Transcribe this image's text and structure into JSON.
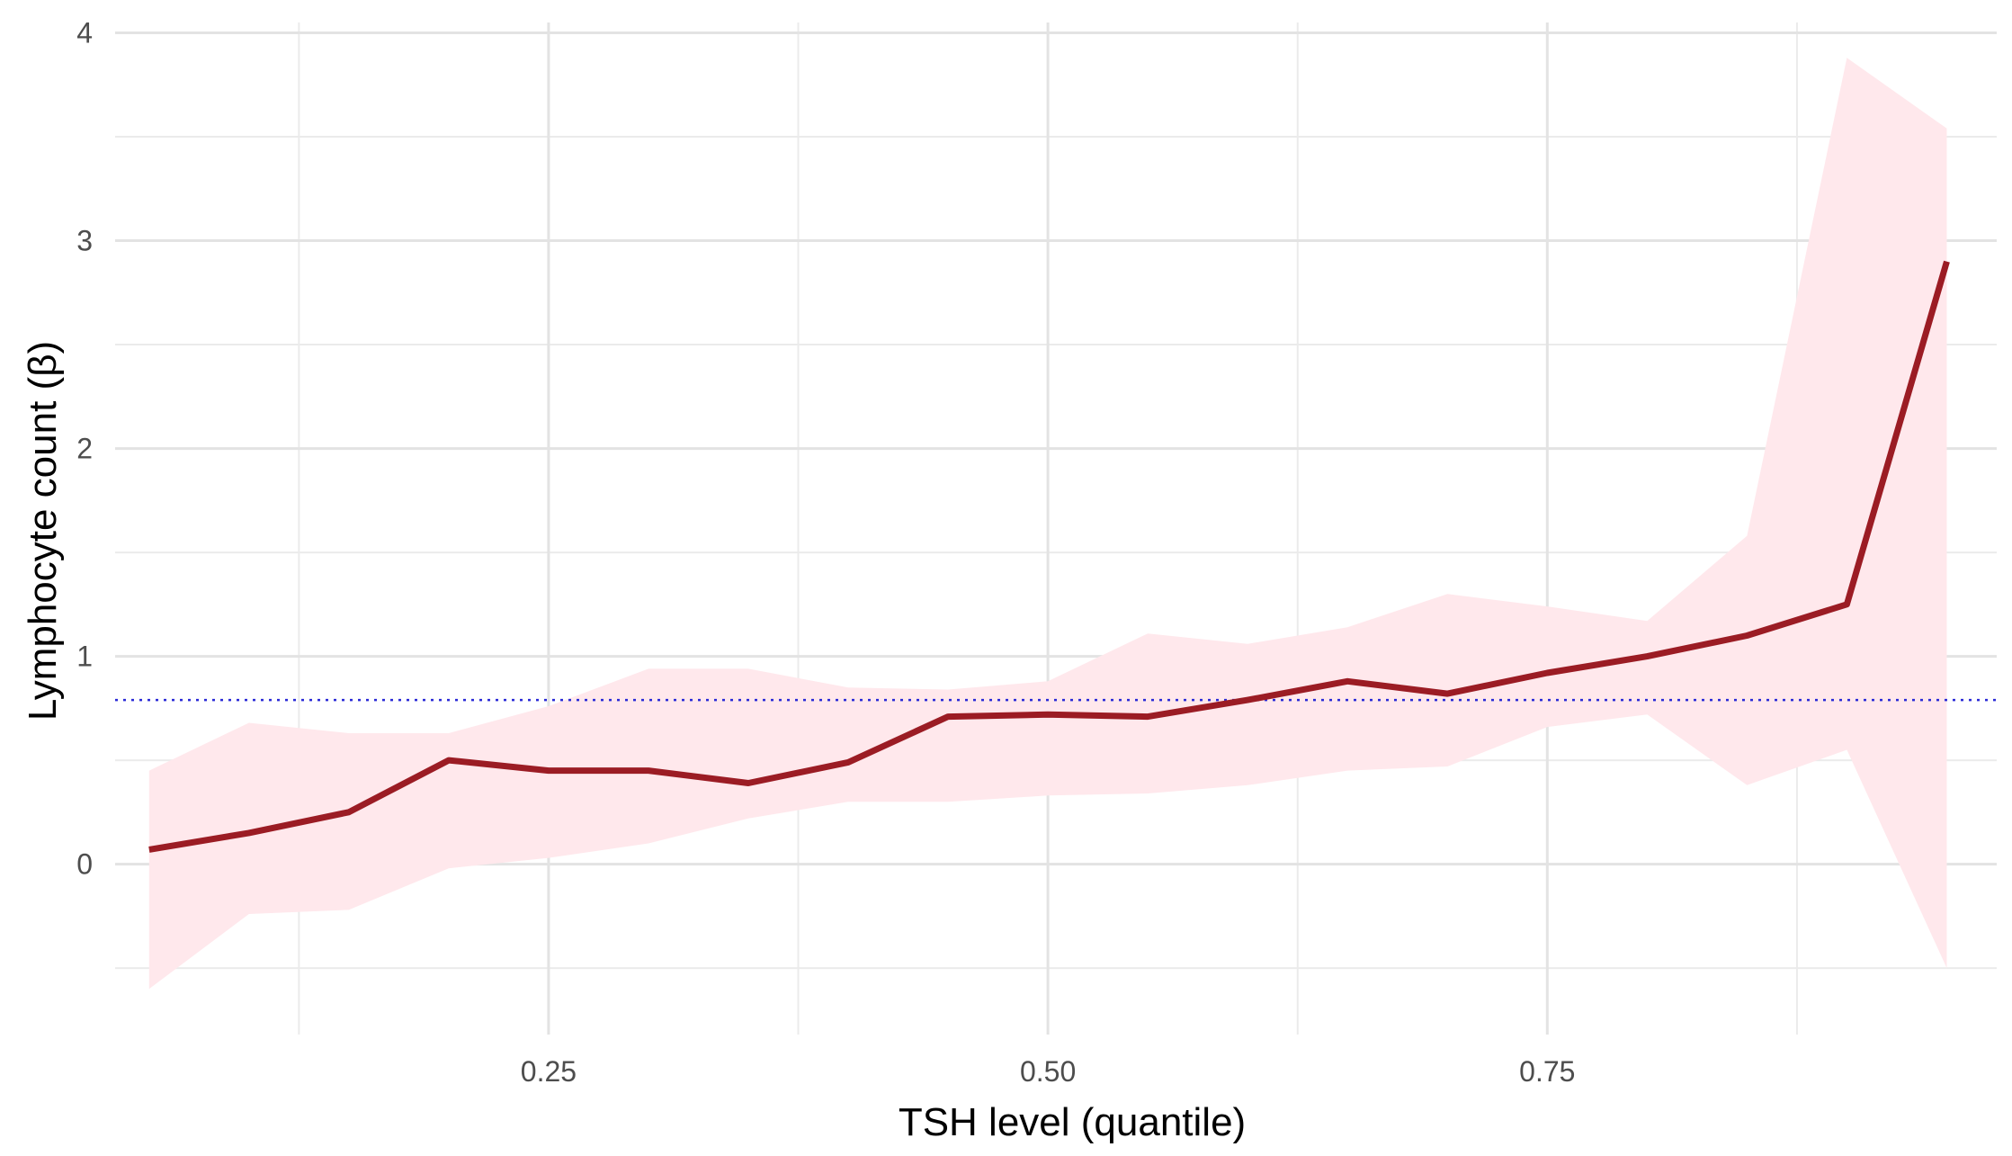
{
  "chart_data": {
    "type": "line",
    "title": "",
    "xlabel": "TSH level (quantile)",
    "ylabel": "Lymphocyte count (β)",
    "xlim": [
      0.033,
      0.975
    ],
    "ylim": [
      -0.82,
      4.05
    ],
    "x_ticks": [
      0.25,
      0.5,
      0.75
    ],
    "x_tick_labels": [
      "0.25",
      "0.50",
      "0.75"
    ],
    "x_minor_ticks": [
      0.125,
      0.375,
      0.625,
      0.875
    ],
    "y_ticks": [
      0,
      1,
      2,
      3,
      4
    ],
    "y_tick_labels": [
      "0",
      "1",
      "2",
      "3",
      "4"
    ],
    "y_minor_ticks": [
      -0.5,
      0.5,
      1.5,
      2.5,
      3.5
    ],
    "grid": true,
    "legend": "none",
    "reference_line": {
      "y": 0.79,
      "style": "dotted",
      "color": "#2b2bd6"
    },
    "series": [
      {
        "color": "#9b1c24",
        "fill_color": "#ffe8ec",
        "x": [
          0.05,
          0.1,
          0.15,
          0.2,
          0.25,
          0.3,
          0.35,
          0.4,
          0.45,
          0.5,
          0.55,
          0.6,
          0.65,
          0.7,
          0.75,
          0.8,
          0.85,
          0.9,
          0.95
        ],
        "y": [
          0.07,
          0.15,
          0.25,
          0.5,
          0.45,
          0.45,
          0.39,
          0.49,
          0.71,
          0.72,
          0.71,
          0.79,
          0.88,
          0.82,
          0.92,
          1.0,
          1.1,
          1.25,
          2.9
        ],
        "lower": [
          -0.6,
          -0.24,
          -0.22,
          -0.02,
          0.03,
          0.1,
          0.22,
          0.3,
          0.3,
          0.33,
          0.34,
          0.38,
          0.45,
          0.47,
          0.66,
          0.72,
          0.38,
          0.55,
          -0.5
        ],
        "upper": [
          0.45,
          0.68,
          0.63,
          0.63,
          0.76,
          0.94,
          0.94,
          0.85,
          0.84,
          0.88,
          1.11,
          1.06,
          1.14,
          1.3,
          1.24,
          1.17,
          1.58,
          3.88,
          3.54
        ]
      }
    ]
  }
}
